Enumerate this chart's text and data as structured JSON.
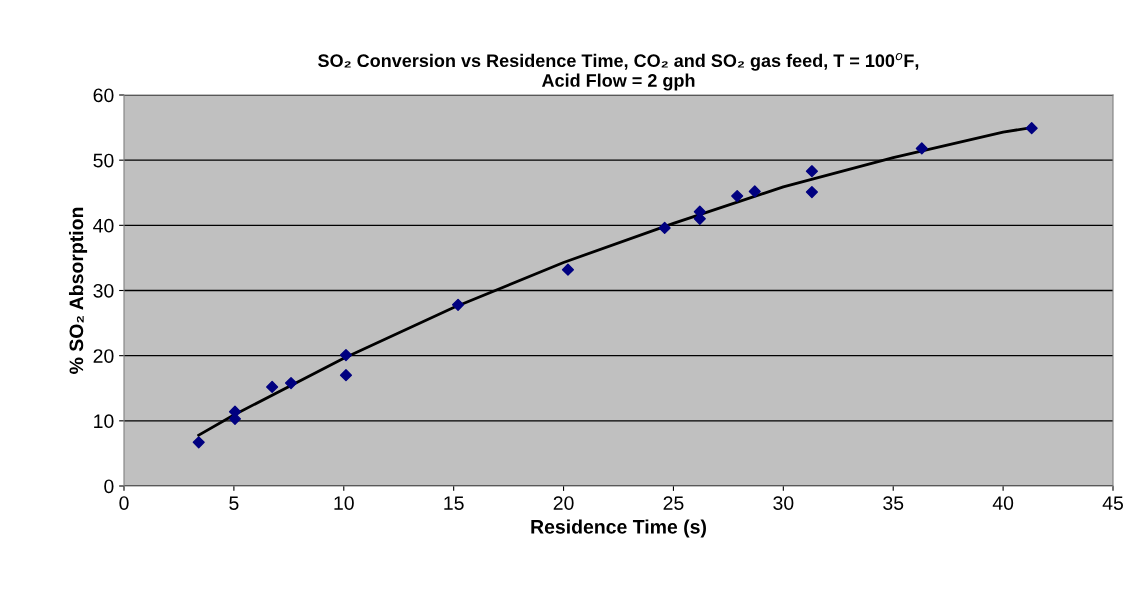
{
  "chart_data": {
    "type": "scatter",
    "title": "SO₂ Conversion vs Residence Time, CO₂ and SO₂ gas feed, T = 100$^{o}$F,\nAcid Flow = 2 gph",
    "xlabel": "Residence Time (s)",
    "ylabel": "% SO₂ Absorption",
    "series": [
      {
        "color": "#000080",
        "marker": "diamond",
        "x": [
          3.4,
          5.05,
          5.05,
          6.74,
          7.6,
          10.1,
          10.1,
          15.2,
          20.2,
          24.6,
          26.2,
          26.2,
          27.9,
          28.7,
          31.3,
          31.3,
          36.3,
          41.3
        ],
        "values": [
          6.7,
          11.4,
          10.3,
          15.2,
          15.8,
          20.1,
          17.0,
          27.8,
          33.2,
          39.6,
          42.1,
          41.0,
          44.5,
          45.2,
          48.3,
          45.1,
          51.8,
          54.9
        ]
      },
      {
        "type": "line",
        "color": "#000000",
        "marker": "none",
        "line_style": "solid",
        "x": [
          3.4,
          5,
          10,
          15,
          20,
          25,
          30,
          35,
          40,
          41.3
        ],
        "values": [
          7.8,
          10.9,
          19.6,
          27.4,
          34.3,
          40.3,
          45.9,
          50.4,
          54.3,
          55.0
        ]
      }
    ],
    "xlim": [
      0,
      45
    ],
    "xticks": [
      0,
      5,
      10,
      15,
      20,
      25,
      30,
      35,
      40,
      45
    ],
    "ylim": [
      0,
      60
    ],
    "yticks": [
      0,
      10,
      20,
      30,
      40,
      50,
      60
    ],
    "grid": "y",
    "legend": false
  }
}
